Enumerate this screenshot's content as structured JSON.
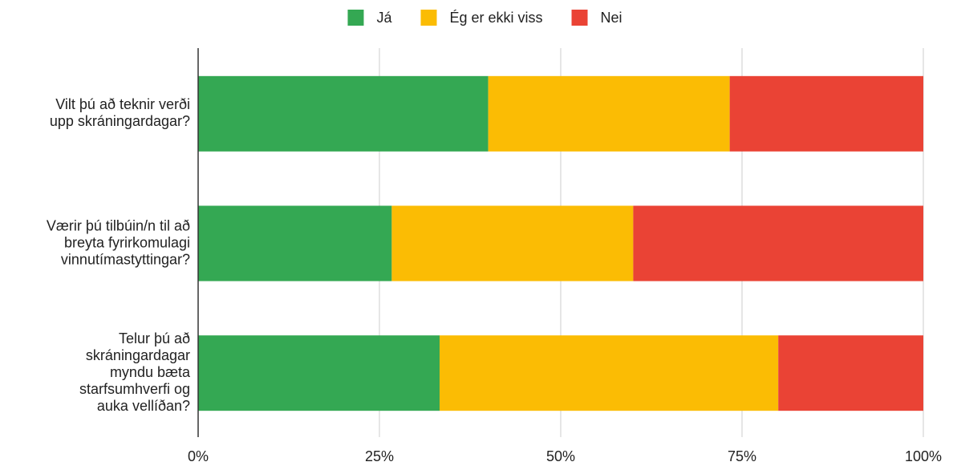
{
  "chart_data": {
    "type": "stacked-bar-horizontal",
    "categories": [
      [
        "Vilt þú að teknir verði",
        "upp skráningardagar?"
      ],
      [
        "Værir þú tilbúin/n til að",
        "breyta fyrirkomulagi",
        "vinnutímastyttingar?"
      ],
      [
        "Telur þú að",
        "skráningardagar",
        "myndu bæta",
        "starfsumhverfi og",
        "auka vellíðan?"
      ]
    ],
    "series": [
      {
        "name": "Já",
        "color": "#34a853",
        "values": [
          40,
          26.7,
          33.3
        ]
      },
      {
        "name": "Ég er ekki viss",
        "color": "#fbbc04",
        "values": [
          33.3,
          33.3,
          46.7
        ]
      },
      {
        "name": "Nei",
        "color": "#ea4335",
        "values": [
          26.7,
          40,
          20
        ]
      }
    ],
    "xlim": [
      0,
      100
    ],
    "xticks": [
      {
        "value": 0,
        "label": "0%"
      },
      {
        "value": 25,
        "label": "25%"
      },
      {
        "value": 50,
        "label": "50%"
      },
      {
        "value": 75,
        "label": "75%"
      },
      {
        "value": 100,
        "label": "100%"
      }
    ],
    "grid": true,
    "legend": "top"
  }
}
